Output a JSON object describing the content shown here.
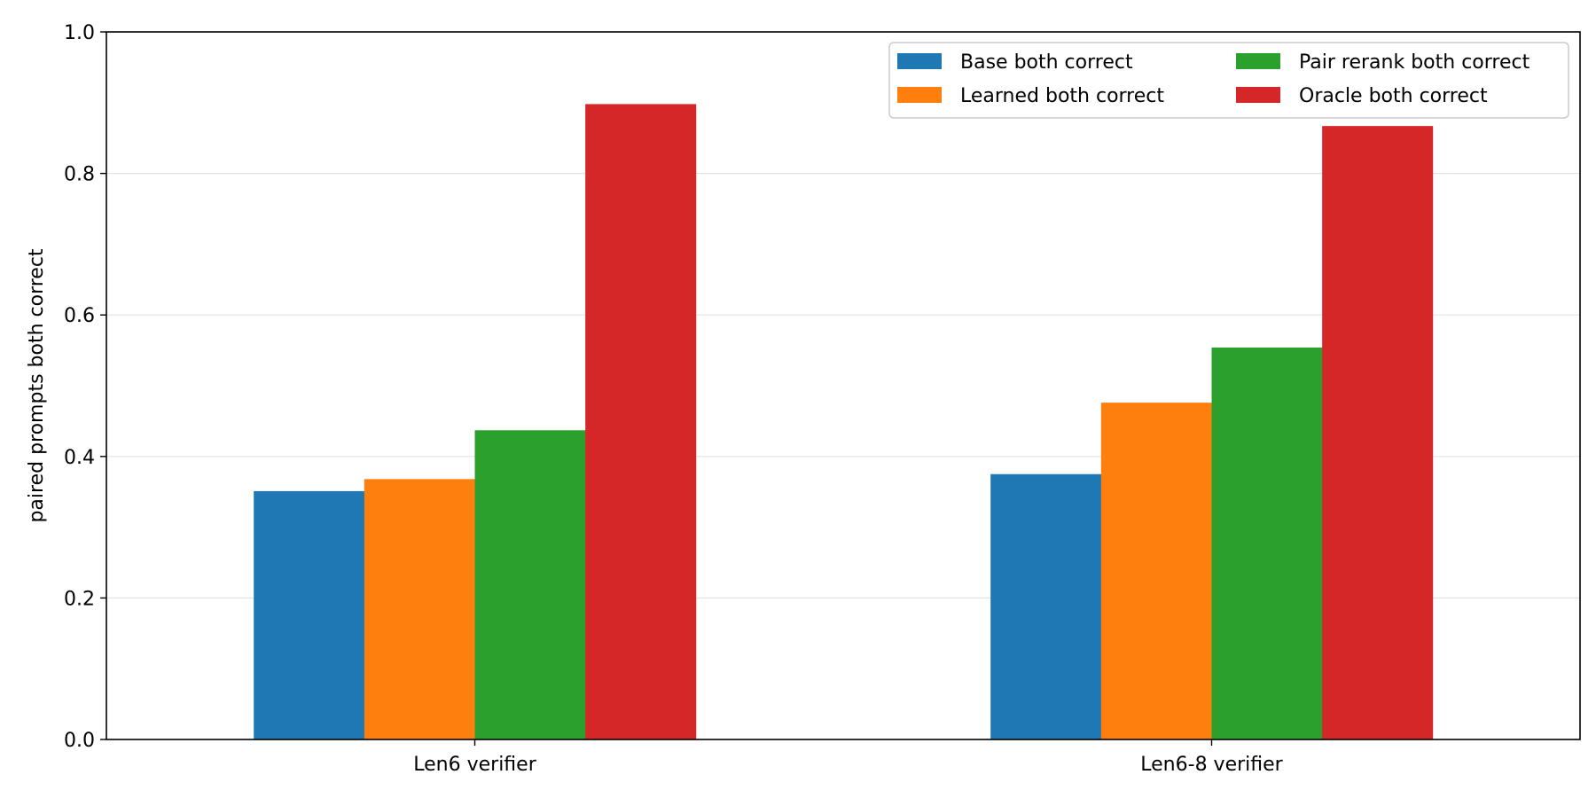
{
  "chart_data": {
    "type": "bar",
    "title": "",
    "xlabel": "",
    "ylabel": "paired prompts both correct",
    "ylim": [
      0,
      1.0
    ],
    "yticks": [
      "0.0",
      "0.2",
      "0.4",
      "0.6",
      "0.8",
      "1.0"
    ],
    "grid": "y-major",
    "legend_placement": "top-right",
    "legend_columns": 2,
    "categories": [
      "Len6 verifier",
      "Len6-8 verifier"
    ],
    "series": [
      {
        "name": "Base both correct",
        "color": "#1f77b4",
        "values": [
          0.351,
          0.375
        ]
      },
      {
        "name": "Learned both correct",
        "color": "#ff7f0e",
        "values": [
          0.368,
          0.476
        ]
      },
      {
        "name": "Pair rerank both correct",
        "color": "#2ca02c",
        "values": [
          0.437,
          0.554
        ]
      },
      {
        "name": "Oracle both correct",
        "color": "#d62728",
        "values": [
          0.898,
          0.867
        ]
      }
    ]
  }
}
